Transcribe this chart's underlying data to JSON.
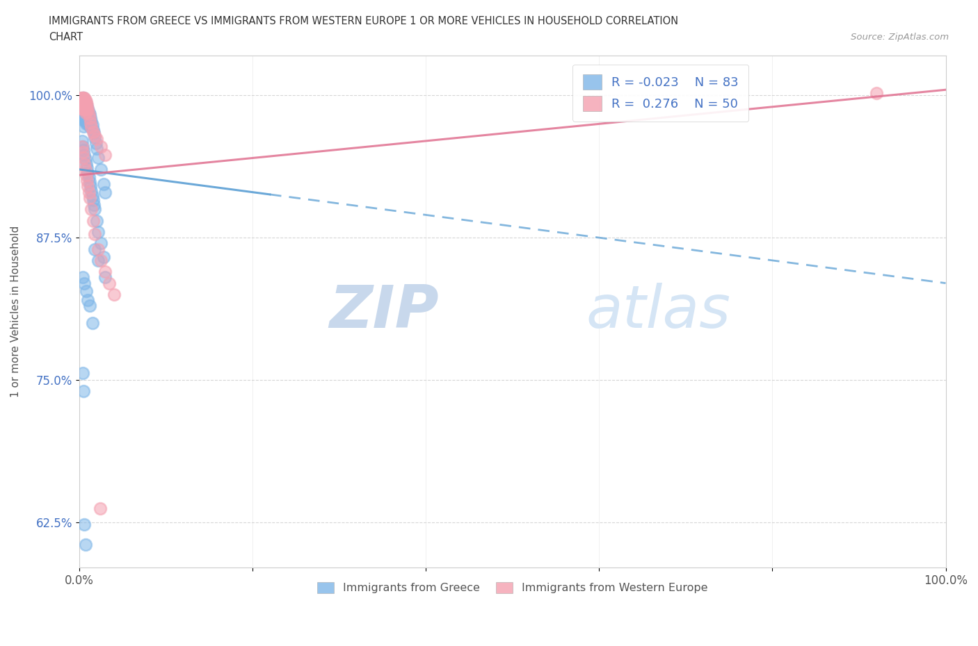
{
  "title_line1": "IMMIGRANTS FROM GREECE VS IMMIGRANTS FROM WESTERN EUROPE 1 OR MORE VEHICLES IN HOUSEHOLD CORRELATION",
  "title_line2": "CHART",
  "source_text": "Source: ZipAtlas.com",
  "ylabel": "1 or more Vehicles in Household",
  "xmin": 0.0,
  "xmax": 1.0,
  "ymin": 0.585,
  "ymax": 1.035,
  "ytick_labels": [
    "62.5%",
    "75.0%",
    "87.5%",
    "100.0%"
  ],
  "ytick_values": [
    0.625,
    0.75,
    0.875,
    1.0
  ],
  "legend_label1": "Immigrants from Greece",
  "legend_label2": "Immigrants from Western Europe",
  "R1": -0.023,
  "N1": 83,
  "R2": 0.276,
  "N2": 50,
  "color_blue": "#7EB6E8",
  "color_pink": "#F4A0B0",
  "color_blue_line": "#5b9fd4",
  "color_pink_line": "#e07090",
  "watermark_zip": "ZIP",
  "watermark_atlas": "atlas",
  "blue_line_x0": 0.0,
  "blue_line_y0": 0.935,
  "blue_line_x1": 1.0,
  "blue_line_y1": 0.835,
  "blue_line_solid_end": 0.22,
  "pink_line_x0": 0.0,
  "pink_line_y0": 0.93,
  "pink_line_x1": 1.0,
  "pink_line_y1": 1.005,
  "blue_x": [
    0.002,
    0.002,
    0.003,
    0.003,
    0.003,
    0.004,
    0.004,
    0.004,
    0.004,
    0.005,
    0.005,
    0.005,
    0.005,
    0.005,
    0.005,
    0.006,
    0.006,
    0.006,
    0.006,
    0.007,
    0.007,
    0.007,
    0.007,
    0.008,
    0.008,
    0.008,
    0.008,
    0.009,
    0.009,
    0.009,
    0.01,
    0.01,
    0.01,
    0.011,
    0.011,
    0.012,
    0.012,
    0.013,
    0.013,
    0.014,
    0.015,
    0.016,
    0.017,
    0.018,
    0.019,
    0.02,
    0.022,
    0.025,
    0.028,
    0.03,
    0.003,
    0.004,
    0.005,
    0.006,
    0.007,
    0.008,
    0.009,
    0.01,
    0.011,
    0.012,
    0.013,
    0.014,
    0.015,
    0.016,
    0.017,
    0.018,
    0.02,
    0.022,
    0.025,
    0.028,
    0.018,
    0.022,
    0.03,
    0.004,
    0.006,
    0.008,
    0.01,
    0.012,
    0.015,
    0.004,
    0.005,
    0.006,
    0.007
  ],
  "blue_y": [
    0.99,
    0.985,
    0.995,
    0.99,
    0.985,
    0.998,
    0.992,
    0.988,
    0.983,
    0.998,
    0.993,
    0.988,
    0.983,
    0.978,
    0.973,
    0.996,
    0.991,
    0.986,
    0.98,
    0.994,
    0.989,
    0.984,
    0.978,
    0.992,
    0.987,
    0.981,
    0.975,
    0.99,
    0.984,
    0.978,
    0.988,
    0.982,
    0.975,
    0.985,
    0.978,
    0.983,
    0.975,
    0.98,
    0.972,
    0.977,
    0.974,
    0.97,
    0.967,
    0.963,
    0.958,
    0.953,
    0.945,
    0.935,
    0.922,
    0.915,
    0.96,
    0.955,
    0.952,
    0.948,
    0.944,
    0.94,
    0.936,
    0.932,
    0.928,
    0.924,
    0.92,
    0.916,
    0.912,
    0.908,
    0.904,
    0.9,
    0.89,
    0.88,
    0.87,
    0.858,
    0.865,
    0.855,
    0.84,
    0.84,
    0.835,
    0.828,
    0.82,
    0.815,
    0.8,
    0.756,
    0.74,
    0.623,
    0.605
  ],
  "pink_x": [
    0.002,
    0.002,
    0.003,
    0.003,
    0.004,
    0.004,
    0.004,
    0.005,
    0.005,
    0.005,
    0.006,
    0.006,
    0.006,
    0.007,
    0.007,
    0.007,
    0.008,
    0.008,
    0.009,
    0.009,
    0.01,
    0.011,
    0.012,
    0.013,
    0.014,
    0.016,
    0.018,
    0.02,
    0.025,
    0.03,
    0.003,
    0.004,
    0.005,
    0.006,
    0.007,
    0.008,
    0.009,
    0.01,
    0.011,
    0.012,
    0.014,
    0.016,
    0.018,
    0.022,
    0.025,
    0.03,
    0.035,
    0.04,
    0.024,
    0.92
  ],
  "pink_y": [
    0.998,
    0.993,
    0.998,
    0.993,
    0.998,
    0.993,
    0.988,
    0.998,
    0.993,
    0.988,
    0.998,
    0.993,
    0.988,
    0.996,
    0.991,
    0.985,
    0.994,
    0.988,
    0.992,
    0.986,
    0.988,
    0.984,
    0.98,
    0.976,
    0.972,
    0.968,
    0.965,
    0.962,
    0.955,
    0.948,
    0.955,
    0.95,
    0.945,
    0.94,
    0.935,
    0.93,
    0.925,
    0.92,
    0.915,
    0.91,
    0.9,
    0.89,
    0.878,
    0.865,
    0.855,
    0.845,
    0.835,
    0.825,
    0.637,
    1.002
  ]
}
